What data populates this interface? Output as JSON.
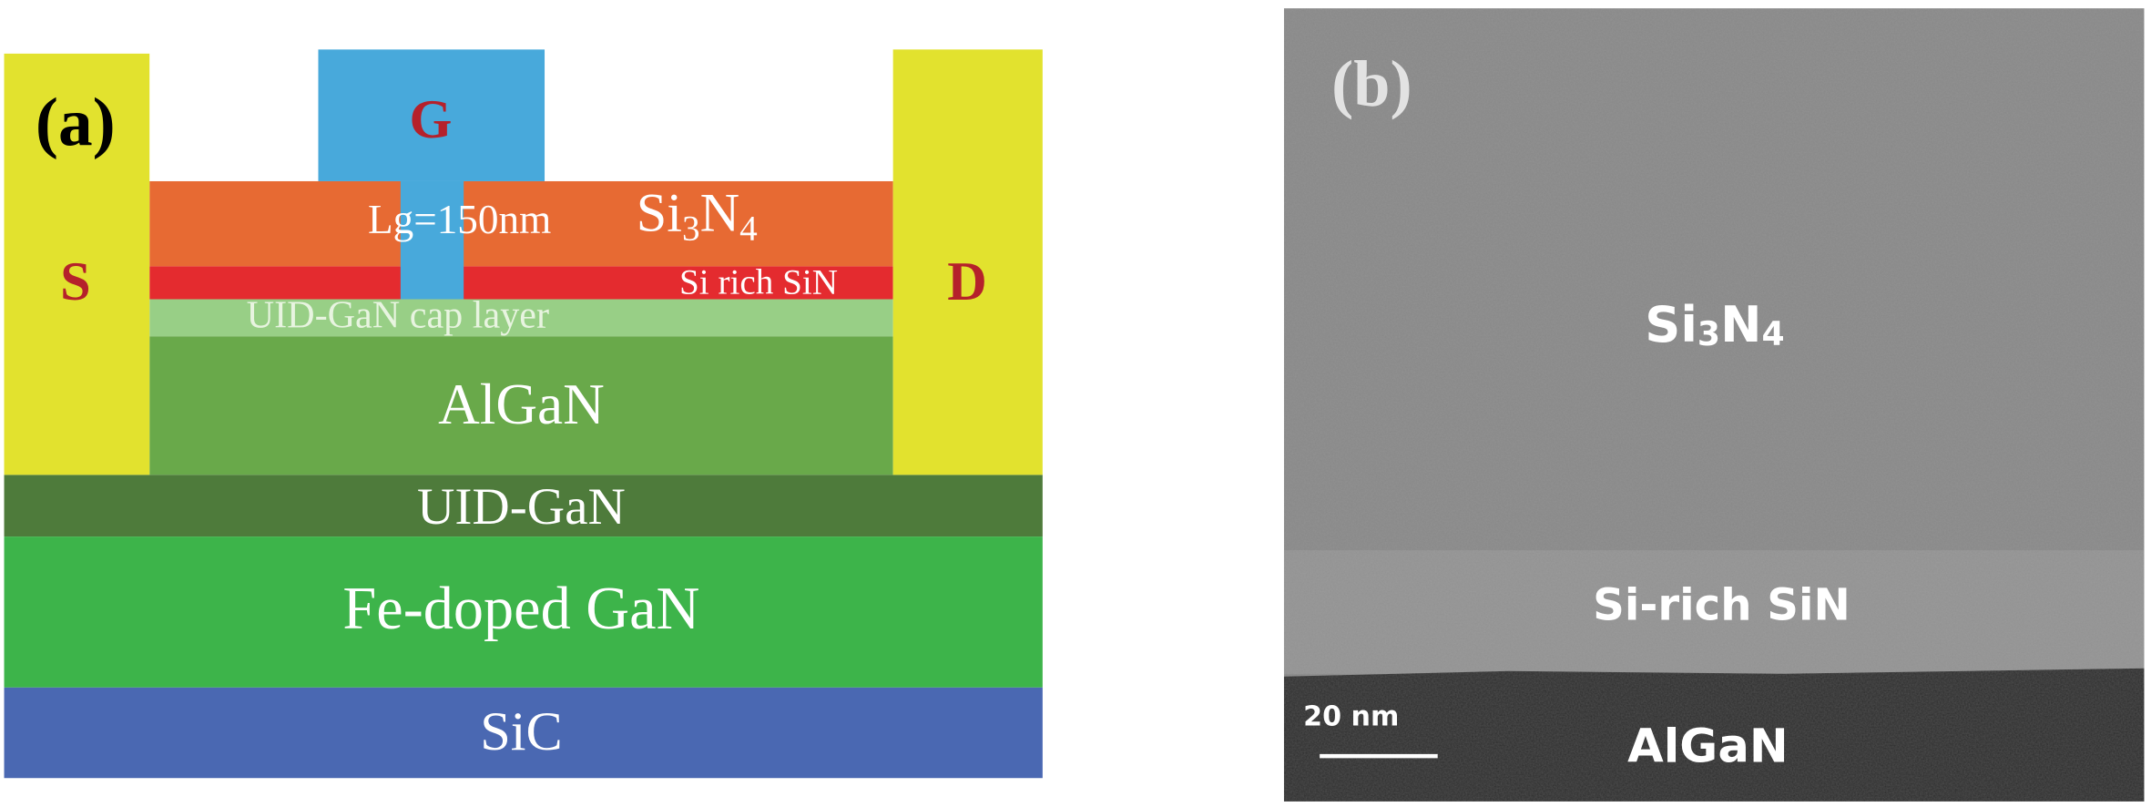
{
  "panel_a": {
    "label": "(a)",
    "gate": "G",
    "source": "S",
    "drain": "D",
    "gate_length": "Lg=150nm",
    "passivation": [
      "Si",
      "3",
      "N",
      "4"
    ],
    "layers": [
      "Si rich SiN",
      "UID-GaN cap layer",
      "AlGaN",
      "UID-GaN",
      "Fe-doped GaN",
      "SiC"
    ]
  },
  "panel_b": {
    "label": "(b)",
    "passivation": [
      "Si",
      "3",
      "N",
      "4"
    ],
    "interlayer": "Si-rich SiN",
    "barrier": "AlGaN",
    "scale_bar": "20 nm"
  }
}
